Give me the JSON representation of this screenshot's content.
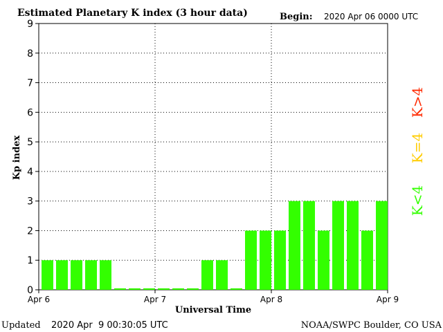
{
  "header": {
    "title": "Estimated Planetary K index (3 hour data)",
    "begin_label": "Begin:",
    "begin_value": "2020 Apr 06 0000 UTC"
  },
  "footer": {
    "updated_label": "Updated",
    "updated_value": "2020 Apr  9 00:30:05 UTC",
    "credit": "NOAA/SWPC Boulder, CO USA"
  },
  "legend": [
    {
      "label": "K>4",
      "color": "#ff2a00"
    },
    {
      "label": "K=4",
      "color": "#ffcc00"
    },
    {
      "label": "K<4",
      "color": "#33ff00"
    }
  ],
  "chart_data": {
    "type": "bar",
    "title": "Estimated Planetary K index (3 hour data)",
    "xlabel": "Universal Time",
    "ylabel": "Kp index",
    "ylim": [
      0,
      9
    ],
    "yticks": [
      0,
      1,
      2,
      3,
      4,
      5,
      6,
      7,
      8,
      9
    ],
    "xticks": [
      "Apr 6",
      "Apr 7",
      "Apr 8",
      "Apr 9"
    ],
    "grid": true,
    "bar_color": "#33ff00",
    "values": [
      1,
      1,
      1,
      1,
      1,
      0.05,
      0.05,
      0.05,
      0.05,
      0.05,
      0.05,
      1,
      1,
      0.05,
      2,
      2,
      2,
      3,
      3,
      2,
      3,
      3,
      2,
      3
    ]
  }
}
